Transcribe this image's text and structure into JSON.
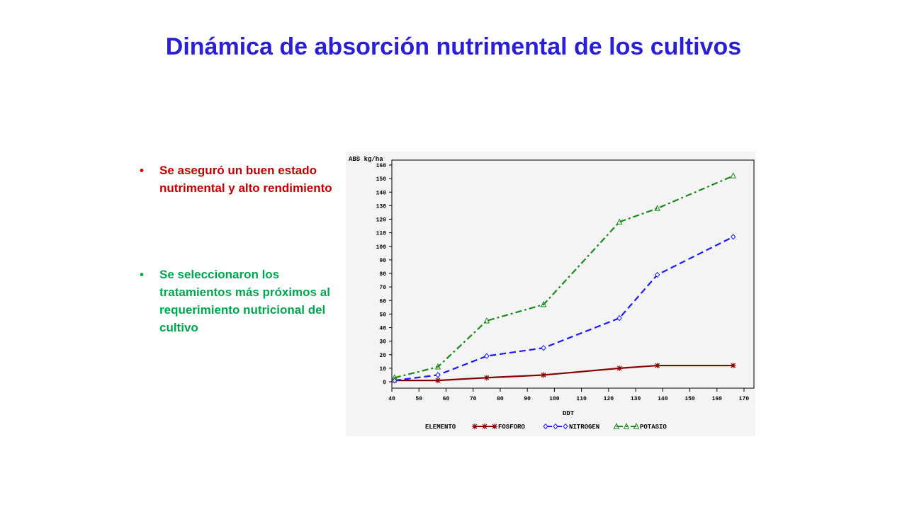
{
  "slide": {
    "title": "Dinámica de absorción nutrimental de los cultivos",
    "bullets": [
      {
        "text": "Se aseguró un buen estado nutrimental y alto rendimiento",
        "color": "#c00000"
      },
      {
        "text": "Se seleccionaron los tratamientos más próximos al requerimiento nutricional del cultivo",
        "color": "#00a550"
      }
    ]
  },
  "chart_data": {
    "type": "line",
    "title": "",
    "xlabel": "DDT",
    "ylabel": "ABS kg/ha",
    "xlim": [
      40,
      170
    ],
    "ylim": [
      0,
      160
    ],
    "xticks": [
      40,
      50,
      60,
      70,
      80,
      90,
      100,
      110,
      120,
      130,
      140,
      150,
      160,
      170
    ],
    "yticks": [
      0,
      10,
      20,
      30,
      40,
      50,
      60,
      70,
      80,
      90,
      100,
      110,
      120,
      130,
      140,
      150,
      160
    ],
    "grid": false,
    "legend_title": "ELEMENTO",
    "legend_position": "bottom",
    "series": [
      {
        "name": "FOSFORO",
        "color": "#8b0000",
        "marker": "star",
        "dash": "solid",
        "x": [
          41,
          57,
          75,
          96,
          124,
          138,
          166
        ],
        "y": [
          1,
          1,
          3,
          5,
          10,
          12,
          12
        ]
      },
      {
        "name": "NITROGEN",
        "color": "#1a1aff",
        "marker": "diamond",
        "dash": "dashed",
        "x": [
          41,
          57,
          75,
          96,
          124,
          138,
          166
        ],
        "y": [
          1,
          5,
          19,
          25,
          47,
          79,
          107
        ]
      },
      {
        "name": "POTASIO",
        "color": "#1a8a1a",
        "marker": "triangle",
        "dash": "dashdot",
        "x": [
          41,
          57,
          75,
          96,
          124,
          138,
          166
        ],
        "y": [
          3,
          11,
          45,
          57,
          118,
          128,
          152
        ]
      }
    ]
  }
}
